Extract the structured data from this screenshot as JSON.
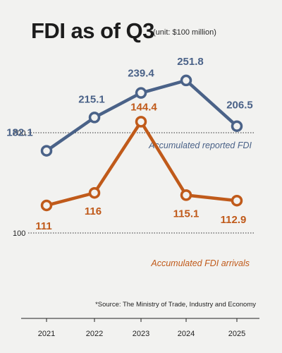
{
  "title": "FDI as of Q3",
  "unit": "(unit: $100 million)",
  "source": "*Source: The Ministry of Trade, Industry and Economy",
  "colors": {
    "reported": "#4a6288",
    "arrivals": "#c05a1a",
    "text": "#1c1c1c"
  },
  "chart_data": {
    "type": "line",
    "categories": [
      "2021",
      "2022",
      "2023",
      "2024",
      "2025"
    ],
    "series": [
      {
        "name": "Accumulated reported FDI",
        "values": [
          182.1,
          215.1,
          239.4,
          251.8,
          206.5
        ],
        "labels": [
          "182.1",
          "215.1",
          "239.4",
          "251.8",
          "206.5"
        ]
      },
      {
        "name": "Accumulated FDI arrivals",
        "values": [
          111,
          116,
          144.4,
          115.1,
          112.9
        ],
        "labels": [
          "111",
          "116",
          "144.4",
          "115.1",
          "112.9"
        ]
      }
    ],
    "reference_lines": [
      {
        "value": 200,
        "label": "200"
      },
      {
        "value": 100,
        "label": "100"
      }
    ],
    "grid": false,
    "legend": "inline labels"
  }
}
